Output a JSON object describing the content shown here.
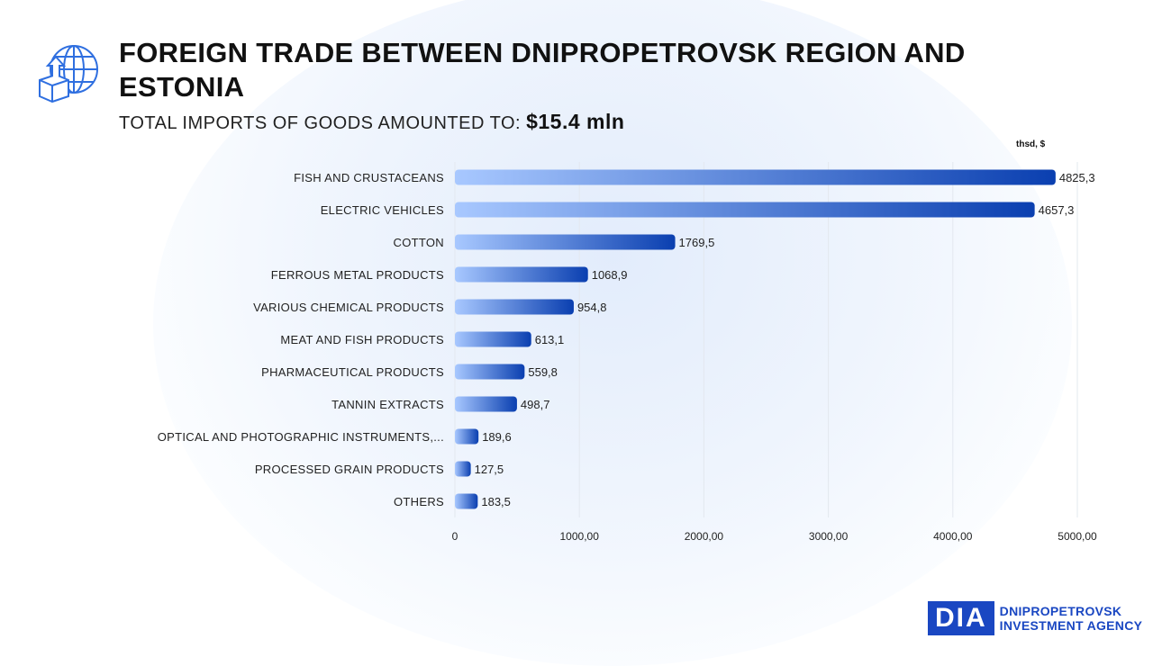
{
  "header": {
    "title_line1": "FOREIGN TRADE BETWEEN DNIPROPETROVSK REGION AND",
    "title_line2": "ESTONIA",
    "subtitle": "TOTAL IMPORTS OF GOODS AMOUNTED TO:",
    "total": "$15.4 mln"
  },
  "logo": {
    "mark": "DIA",
    "line1": "DNIPROPETROVSK",
    "line2": "INVESTMENT AGENCY"
  },
  "colors": {
    "bar_start": "#a8c8ff",
    "bar_end": "#0a3fb0",
    "brand": "#1a47c2"
  },
  "chart_data": {
    "type": "bar",
    "orientation": "horizontal",
    "unit": "thsd, $",
    "categories": [
      "FISH AND CRUSTACEANS",
      "ELECTRIC VEHICLES",
      "COTTON",
      "FERROUS METAL PRODUCTS",
      "VARIOUS CHEMICAL PRODUCTS",
      "MEAT AND FISH PRODUCTS",
      "PHARMACEUTICAL PRODUCTS",
      "TANNIN EXTRACTS",
      "OPTICAL AND PHOTOGRAPHIC INSTRUMENTS,...",
      "PROCESSED GRAIN PRODUCTS",
      "OTHERS"
    ],
    "values": [
      4825.3,
      4657.3,
      1769.5,
      1068.9,
      954.8,
      613.1,
      559.8,
      498.7,
      189.6,
      127.5,
      183.5
    ],
    "value_labels": [
      "4825,3",
      "4657,3",
      "1769,5",
      "1068,9",
      "954,8",
      "613,1",
      "559,8",
      "498,7",
      "189,6",
      "127,5",
      "183,5"
    ],
    "xlim": [
      0,
      5000
    ],
    "xticks": [
      0,
      1000,
      2000,
      3000,
      4000,
      5000
    ],
    "xtick_labels": [
      "0",
      "1000,00",
      "2000,00",
      "3000,00",
      "4000,00",
      "5000,00"
    ],
    "grid": true
  }
}
